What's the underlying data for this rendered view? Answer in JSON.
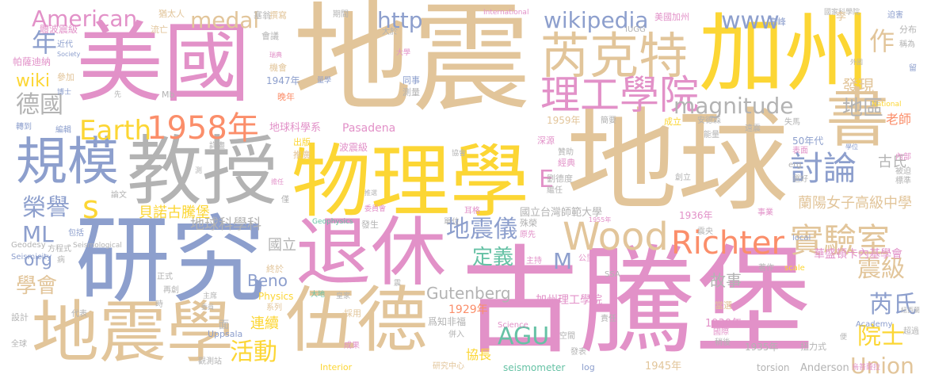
{
  "colors": {
    "tan": "#e2c59a",
    "pink": "#e291c8",
    "yellow": "#fcd634",
    "blue": "#8d9fcd",
    "gray": "#b3b3b3",
    "orange": "#fb8e6a",
    "teal": "#66c2a5",
    "green": "#a6d854"
  },
  "words": [
    {
      "text": "地震",
      "c": "tan"
    },
    {
      "text": "古騰堡",
      "c": "pink"
    },
    {
      "text": "美國",
      "c": "pink"
    },
    {
      "text": "地球",
      "c": "tan"
    },
    {
      "text": "研究",
      "c": "blue"
    },
    {
      "text": "加州",
      "c": "yellow"
    },
    {
      "text": "物理學",
      "c": "yellow"
    },
    {
      "text": "教授",
      "c": "gray"
    },
    {
      "text": "退休",
      "c": "pink"
    },
    {
      "text": "伍德",
      "c": "tan"
    },
    {
      "text": "地震學",
      "c": "tan"
    },
    {
      "text": "規模",
      "c": "blue"
    },
    {
      "text": "書",
      "c": "tan"
    },
    {
      "text": "芮克特",
      "c": "tan"
    },
    {
      "text": "理工學院",
      "c": "pink"
    },
    {
      "text": "Wood",
      "c": "tan"
    },
    {
      "text": "實驗室",
      "c": "tan"
    },
    {
      "text": "Richter",
      "c": "orange"
    },
    {
      "text": "1958年",
      "c": "orange"
    },
    {
      "text": "Earth",
      "c": "yellow"
    },
    {
      "text": "American",
      "c": "pink"
    },
    {
      "text": "medal",
      "c": "tan"
    },
    {
      "text": "http",
      "c": "blue"
    },
    {
      "text": "wikipedia",
      "c": "blue"
    },
    {
      "text": "www",
      "c": "blue"
    },
    {
      "text": "magnitude",
      "c": "gray"
    },
    {
      "text": "討論",
      "c": "blue"
    },
    {
      "text": "地區",
      "c": "gray"
    },
    {
      "text": "德國",
      "c": "gray"
    },
    {
      "text": "年",
      "c": "blue"
    },
    {
      "text": "作",
      "c": "tan"
    },
    {
      "text": "榮譽",
      "c": "blue"
    },
    {
      "text": "s",
      "c": "yellow"
    },
    {
      "text": "E",
      "c": "pink"
    },
    {
      "text": "AGU",
      "c": "teal"
    },
    {
      "text": "地震儀",
      "c": "blue"
    },
    {
      "text": "定義",
      "c": "teal"
    },
    {
      "text": "M",
      "c": "blue"
    },
    {
      "text": "活動",
      "c": "yellow"
    },
    {
      "text": "芮氏",
      "c": "blue"
    },
    {
      "text": "震級",
      "c": "tan"
    },
    {
      "text": "院士",
      "c": "yellow"
    },
    {
      "text": "Union",
      "c": "tan"
    },
    {
      "text": "ML",
      "c": "blue"
    },
    {
      "text": "org",
      "c": "blue"
    },
    {
      "text": "學會",
      "c": "tan"
    },
    {
      "text": "wiki",
      "c": "yellow"
    },
    {
      "text": "連續",
      "c": "yellow"
    },
    {
      "text": "Beno",
      "c": "blue"
    },
    {
      "text": "Gutenberg",
      "c": "gray"
    },
    {
      "text": "故事",
      "c": "gray"
    },
    {
      "text": "古氏",
      "c": "gray"
    },
    {
      "text": "發現",
      "c": "tan"
    },
    {
      "text": "老師",
      "c": "orange"
    },
    {
      "text": "地球科學科",
      "c": "gray"
    },
    {
      "text": "國立",
      "c": "gray"
    },
    {
      "text": "貝諾古騰堡",
      "c": "yellow"
    },
    {
      "text": "蘭陽女子高級中學",
      "c": "tan"
    },
    {
      "text": "國立台灣師範大學",
      "c": "gray"
    },
    {
      "text": "加州理工學院",
      "c": "pink"
    },
    {
      "text": "華盛頓卡內基學會",
      "c": "pink"
    },
    {
      "text": "協長",
      "c": "yellow"
    },
    {
      "text": "地球科學系",
      "c": "pink"
    },
    {
      "text": "Pasadena",
      "c": "pink"
    },
    {
      "text": "1929年",
      "c": "orange"
    },
    {
      "text": "1930年",
      "c": "pink"
    },
    {
      "text": "1935年",
      "c": "gray"
    },
    {
      "text": "1936年",
      "c": "pink"
    },
    {
      "text": "1945年",
      "c": "tan"
    },
    {
      "text": "1947年",
      "c": "blue"
    },
    {
      "text": "1959年",
      "c": "tan"
    },
    {
      "text": "50年代",
      "c": "blue"
    },
    {
      "text": "Anderson",
      "c": "gray"
    },
    {
      "text": "torsion",
      "c": "gray"
    },
    {
      "text": "seismometer",
      "c": "teal"
    },
    {
      "text": "Interior",
      "c": "yellow"
    },
    {
      "text": "Physics",
      "c": "yellow"
    },
    {
      "text": "Uppsala",
      "c": "blue"
    },
    {
      "text": "Science",
      "c": "pink"
    },
    {
      "text": "Academy",
      "c": "blue"
    },
    {
      "text": "Seismicity",
      "c": "blue"
    },
    {
      "text": "Geodesy",
      "c": "gray"
    },
    {
      "text": "Seismological",
      "c": "gray"
    },
    {
      "text": "Geophysics",
      "c": "teal"
    },
    {
      "text": "International",
      "c": "pink"
    },
    {
      "text": "IUGG",
      "c": "gray"
    },
    {
      "text": "Society",
      "c": "blue"
    },
    {
      "text": "National",
      "c": "yellow"
    },
    {
      "text": "local",
      "c": "blue"
    },
    {
      "text": "scale",
      "c": "yellow"
    },
    {
      "text": "SSA",
      "c": "gray"
    },
    {
      "text": "log",
      "c": "blue"
    },
    {
      "text": "erg",
      "c": "gray"
    },
    {
      "text": "Mb",
      "c": "gray"
    },
    {
      "text": "體波震級",
      "c": "pink"
    },
    {
      "text": "帕薩迪納",
      "c": "pink"
    },
    {
      "text": "近代",
      "c": "blue"
    },
    {
      "text": "參加",
      "c": "tan"
    },
    {
      "text": "博士",
      "c": "blue"
    },
    {
      "text": "轉到",
      "c": "blue"
    },
    {
      "text": "編輯",
      "c": "blue"
    },
    {
      "text": "設計",
      "c": "gray"
    },
    {
      "text": "全球",
      "c": "gray"
    },
    {
      "text": "代表",
      "c": "gray"
    },
    {
      "text": "猶太人",
      "c": "tan"
    },
    {
      "text": "流亡",
      "c": "tan"
    },
    {
      "text": "塞翁",
      "c": "gray"
    },
    {
      "text": "撰寫",
      "c": "tan"
    },
    {
      "text": "期間",
      "c": "gray"
    },
    {
      "text": "大於",
      "c": "gray"
    },
    {
      "text": "會議",
      "c": "gray"
    },
    {
      "text": "機會",
      "c": "tan"
    },
    {
      "text": "瑞典",
      "c": "pink"
    },
    {
      "text": "量學",
      "c": "blue"
    },
    {
      "text": "大學",
      "c": "pink"
    },
    {
      "text": "同事",
      "c": "blue"
    },
    {
      "text": "測量",
      "c": "gray"
    },
    {
      "text": "晚年",
      "c": "orange"
    },
    {
      "text": "美國加州",
      "c": "pink"
    },
    {
      "text": "高峰",
      "c": "blue"
    },
    {
      "text": "國家科學院",
      "c": "gray"
    },
    {
      "text": "迫害",
      "c": "blue"
    },
    {
      "text": "分布",
      "c": "gray"
    },
    {
      "text": "稱為",
      "c": "gray"
    },
    {
      "text": "留",
      "c": "blue"
    },
    {
      "text": "外國",
      "c": "gray"
    },
    {
      "text": "簡要",
      "c": "gray"
    },
    {
      "text": "成立",
      "c": "yellow"
    },
    {
      "text": "安德森",
      "c": "gray"
    },
    {
      "text": "遠震",
      "c": "gray"
    },
    {
      "text": "失馬",
      "c": "gray"
    },
    {
      "text": "深源",
      "c": "pink"
    },
    {
      "text": "贊助",
      "c": "gray"
    },
    {
      "text": "出版",
      "c": "yellow"
    },
    {
      "text": "推廣",
      "c": "tan"
    },
    {
      "text": "詳盡",
      "c": "gray"
    },
    {
      "text": "波震級",
      "c": "pink"
    },
    {
      "text": "協會",
      "c": "gray"
    },
    {
      "text": "經典",
      "c": "pink"
    },
    {
      "text": "能量",
      "c": "gray"
    },
    {
      "text": "學位",
      "c": "blue"
    },
    {
      "text": "表面",
      "c": "pink"
    },
    {
      "text": "內部",
      "c": "pink"
    },
    {
      "text": "被迫",
      "c": "gray"
    },
    {
      "text": "選好",
      "c": "gray"
    },
    {
      "text": "標準",
      "c": "gray"
    },
    {
      "text": "測",
      "c": "gray"
    },
    {
      "text": "擔任",
      "c": "pink"
    },
    {
      "text": "推選",
      "c": "gray"
    },
    {
      "text": "劉德度",
      "c": "gray"
    },
    {
      "text": "繼任",
      "c": "gray"
    },
    {
      "text": "創立",
      "c": "gray"
    },
    {
      "text": "論文",
      "c": "gray"
    },
    {
      "text": "僅",
      "c": "gray"
    },
    {
      "text": "委員會",
      "c": "pink"
    },
    {
      "text": "耳格",
      "c": "pink"
    },
    {
      "text": "單位",
      "c": "gray"
    },
    {
      "text": "1955年",
      "c": "pink"
    },
    {
      "text": "事業",
      "c": "pink"
    },
    {
      "text": "震央",
      "c": "gray"
    },
    {
      "text": "包括",
      "c": "blue"
    },
    {
      "text": "方程式",
      "c": "gray"
    },
    {
      "text": "病",
      "c": "gray"
    },
    {
      "text": "發生",
      "c": "gray"
    },
    {
      "text": "殊榮",
      "c": "gray"
    },
    {
      "text": "原先",
      "c": "pink"
    },
    {
      "text": "主持",
      "c": "pink"
    },
    {
      "text": "公里",
      "c": "pink"
    },
    {
      "text": "著作",
      "c": "gray"
    },
    {
      "text": "終於",
      "c": "tan"
    },
    {
      "text": "正式",
      "c": "gray"
    },
    {
      "text": "再創",
      "c": "gray"
    },
    {
      "text": "主席",
      "c": "gray"
    },
    {
      "text": "時",
      "c": "gray"
    },
    {
      "text": "委員",
      "c": "gray"
    },
    {
      "text": "系列",
      "c": "tan"
    },
    {
      "text": "大地",
      "c": "teal"
    },
    {
      "text": "皇家",
      "c": "gray"
    },
    {
      "text": "採用",
      "c": "tan"
    },
    {
      "text": "震",
      "c": "gray"
    },
    {
      "text": "爲知非福",
      "c": "gray"
    },
    {
      "text": "併入",
      "c": "gray"
    },
    {
      "text": "空間",
      "c": "gray"
    },
    {
      "text": "責任",
      "c": "gray"
    },
    {
      "text": "發表",
      "c": "gray"
    },
    {
      "text": "面",
      "c": "gray"
    },
    {
      "text": "成果",
      "c": "pink"
    },
    {
      "text": "研究中心",
      "c": "tan"
    },
    {
      "text": "觀測站",
      "c": "gray"
    },
    {
      "text": "當選",
      "c": "tan"
    },
    {
      "text": "稍後",
      "c": "gray"
    },
    {
      "text": "國際",
      "c": "pink"
    },
    {
      "text": "扭力式",
      "c": "gray"
    },
    {
      "text": "便",
      "c": "gray"
    },
    {
      "text": "超過",
      "c": "gray"
    },
    {
      "text": "烏普薩拉",
      "c": "pink"
    },
    {
      "text": "先",
      "c": "gray"
    },
    {
      "text": "李",
      "c": "tan"
    },
    {
      "text": "紐西蘭",
      "c": "gray"
    }
  ]
}
